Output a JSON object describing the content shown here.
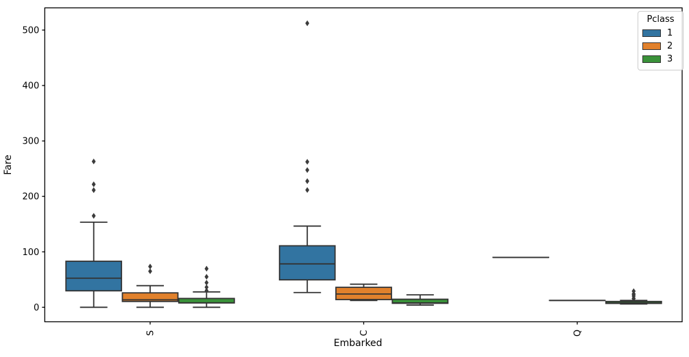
{
  "chart_data": {
    "type": "box",
    "title": "",
    "xlabel": "Embarked",
    "ylabel": "Fare",
    "categories": [
      "S",
      "C",
      "Q"
    ],
    "yticks": [
      0,
      100,
      200,
      300,
      400,
      500
    ],
    "ylim": [
      -26,
      539
    ],
    "grid": false,
    "legend": {
      "title": "Pclass",
      "position": "upper right"
    },
    "colors": {
      "box_edge": "#333333",
      "whisker": "#333333",
      "outlier": "#3b3b3b",
      "axis": "#000000"
    },
    "series": [
      {
        "name": "1",
        "color": "#3274A1",
        "boxes": [
          {
            "category": "S",
            "whisker_low": 0,
            "q1": 29.7,
            "median": 52.5,
            "q3": 83,
            "whisker_high": 153.5,
            "outliers": [
              164.9,
              211.3,
              221.8,
              263
            ]
          },
          {
            "category": "C",
            "whisker_low": 26.6,
            "q1": 49.5,
            "median": 78.3,
            "q3": 110.9,
            "whisker_high": 146.5,
            "outliers": [
              211.5,
              227.5,
              247.5,
              262.4,
              512.3
            ]
          },
          {
            "category": "Q",
            "whisker_low": 90,
            "q1": 90,
            "median": 90,
            "q3": 90,
            "whisker_high": 90,
            "outliers": []
          }
        ]
      },
      {
        "name": "2",
        "color": "#E1812C",
        "boxes": [
          {
            "category": "S",
            "whisker_low": 0,
            "q1": 10.5,
            "median": 13.5,
            "q3": 26,
            "whisker_high": 39,
            "outliers": [
              65,
              73.5
            ]
          },
          {
            "category": "C",
            "whisker_low": 12.35,
            "q1": 13.9,
            "median": 24,
            "q3": 36,
            "whisker_high": 41.6,
            "outliers": []
          },
          {
            "category": "Q",
            "whisker_low": 12.35,
            "q1": 12.35,
            "median": 12.35,
            "q3": 12.35,
            "whisker_high": 12.35,
            "outliers": []
          }
        ]
      },
      {
        "name": "3",
        "color": "#3A923A",
        "boxes": [
          {
            "category": "S",
            "whisker_low": 0,
            "q1": 7.85,
            "median": 8.05,
            "q3": 15.9,
            "whisker_high": 27.75,
            "outliers": [
              30,
              36.1,
              44.4,
              55,
              69.6
            ]
          },
          {
            "category": "C",
            "whisker_low": 4,
            "q1": 7.2,
            "median": 7.9,
            "q3": 14.5,
            "whisker_high": 22.4,
            "outliers": []
          },
          {
            "category": "Q",
            "whisker_low": 6,
            "q1": 7,
            "median": 7.75,
            "q3": 10.5,
            "whisker_high": 12.35,
            "outliers": [
              15.5,
              16.1,
              20.25,
              23.25,
              24.15,
              29.1
            ]
          }
        ]
      }
    ]
  }
}
